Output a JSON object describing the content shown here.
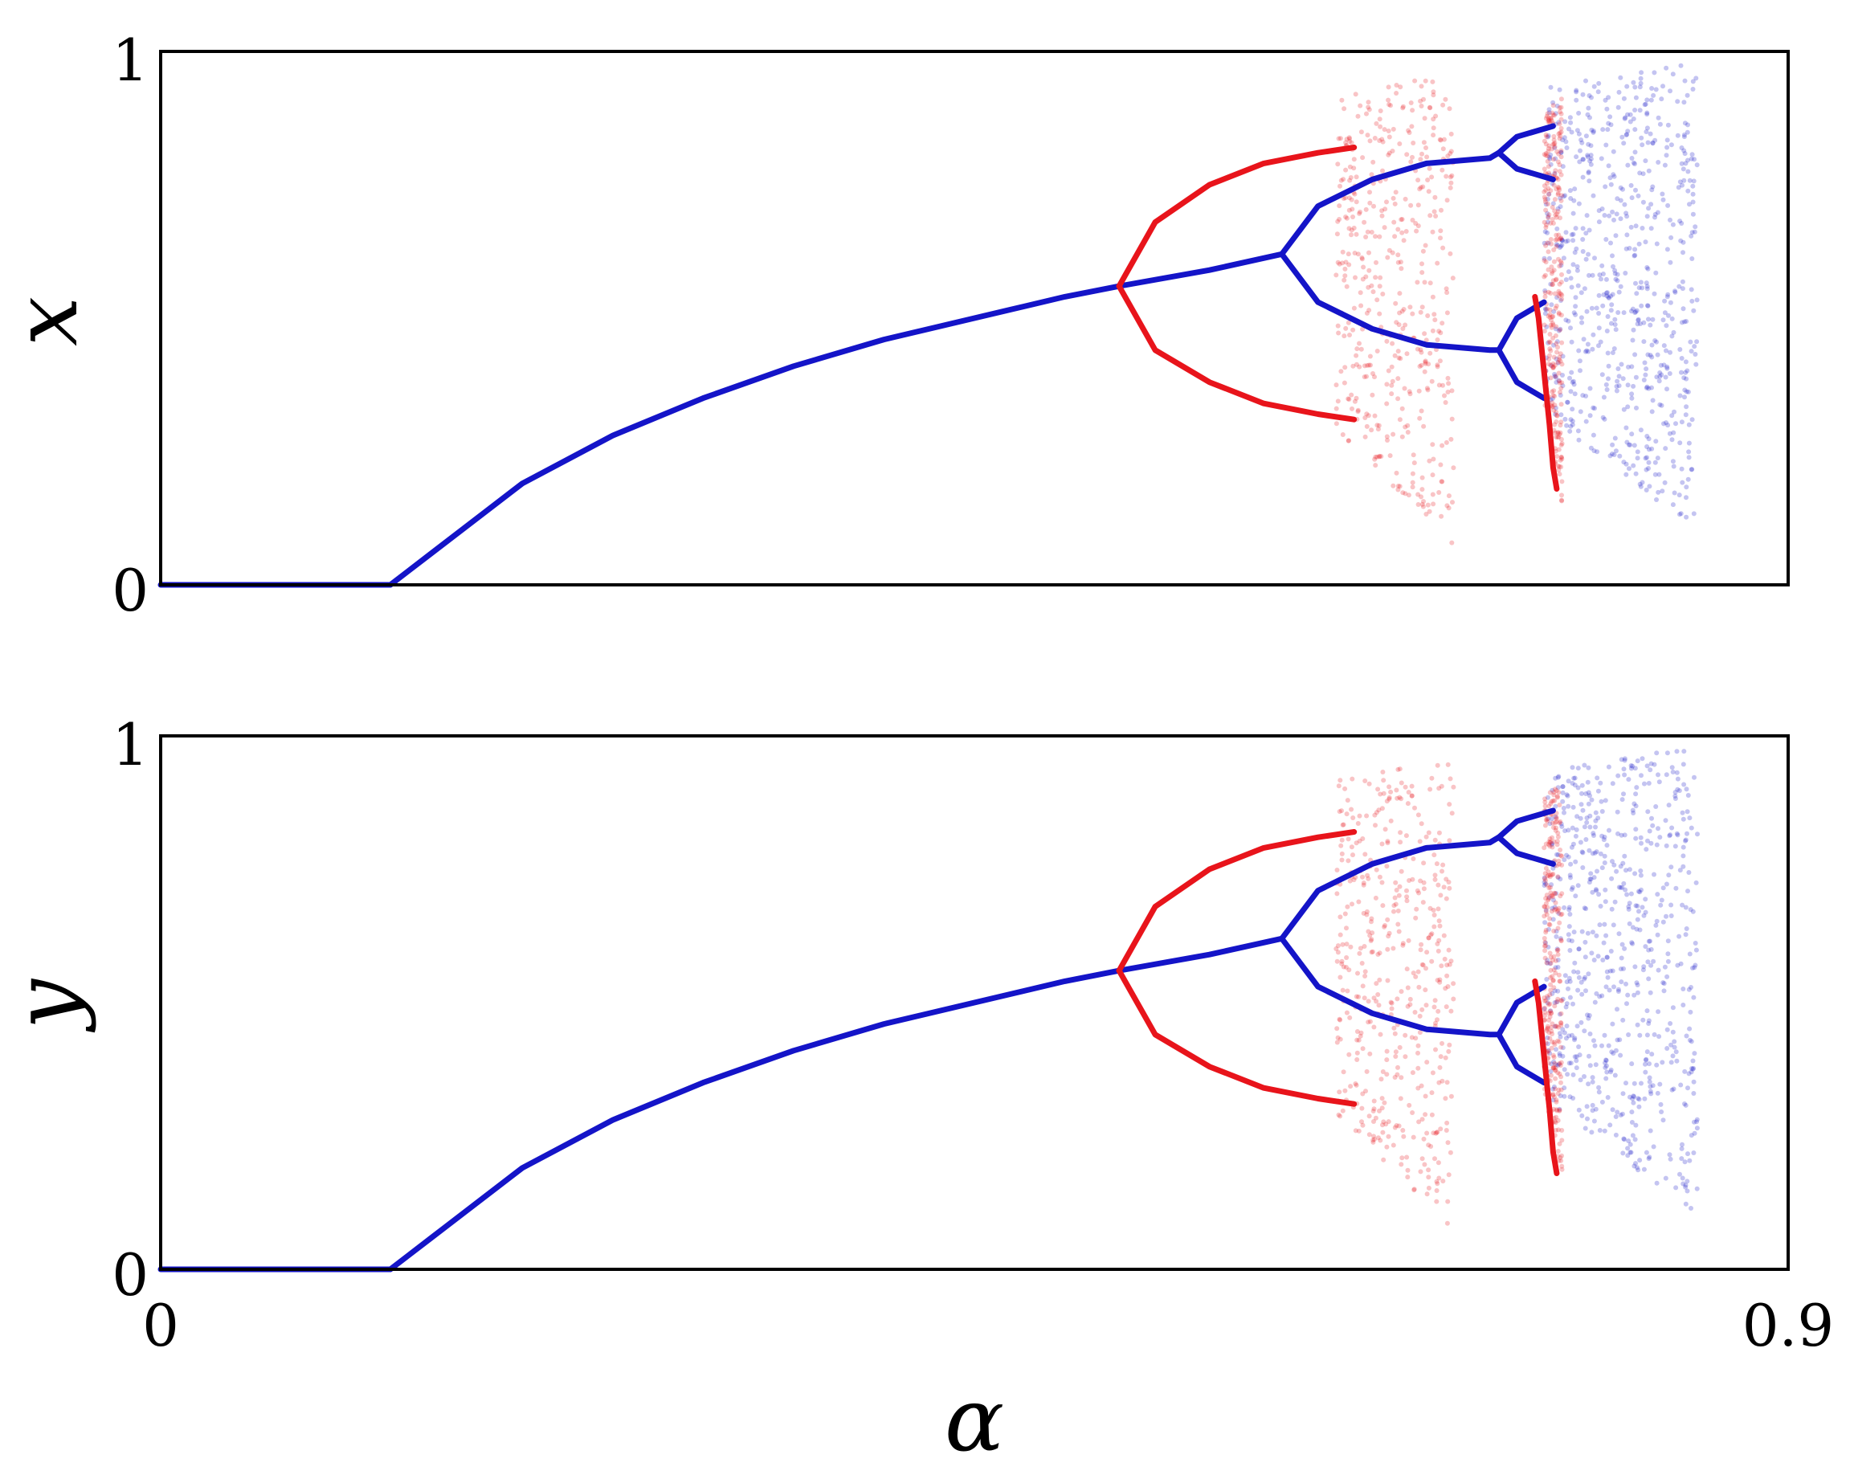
{
  "chart_data": [
    {
      "type": "scatter",
      "ylabel": "x",
      "xlim": [
        0,
        0.9
      ],
      "ylim": [
        0,
        1
      ],
      "yticks": [
        "0",
        "1"
      ],
      "colors": {
        "branch_a": "#e8141b",
        "branch_b": "#1414c8"
      },
      "series": [
        {
          "name": "",
          "color": "#1414c8",
          "segments": [
            {
              "kind": "line",
              "points": [
                [
                  0.0,
                  0.0
                ],
                [
                  0.127,
                  0.0
                ]
              ]
            },
            {
              "kind": "line",
              "points": [
                [
                  0.127,
                  0.0
                ],
                [
                  0.15,
                  0.06
                ],
                [
                  0.2,
                  0.19
                ],
                [
                  0.25,
                  0.28
                ],
                [
                  0.3,
                  0.35
                ],
                [
                  0.35,
                  0.41
                ],
                [
                  0.4,
                  0.46
                ],
                [
                  0.45,
                  0.5
                ],
                [
                  0.5,
                  0.54
                ],
                [
                  0.53,
                  0.56
                ],
                [
                  0.58,
                  0.59
                ],
                [
                  0.62,
                  0.62
                ]
              ]
            },
            {
              "kind": "line",
              "points": [
                [
                  0.62,
                  0.62
                ],
                [
                  0.64,
                  0.71
                ],
                [
                  0.67,
                  0.76
                ],
                [
                  0.7,
                  0.79
                ],
                [
                  0.735,
                  0.8
                ],
                [
                  0.74,
                  0.81
                ]
              ]
            },
            {
              "kind": "line",
              "points": [
                [
                  0.62,
                  0.62
                ],
                [
                  0.64,
                  0.53
                ],
                [
                  0.67,
                  0.48
                ],
                [
                  0.7,
                  0.45
                ],
                [
                  0.735,
                  0.44
                ],
                [
                  0.74,
                  0.44
                ]
              ]
            },
            {
              "kind": "line",
              "points": [
                [
                  0.74,
                  0.81
                ],
                [
                  0.75,
                  0.84
                ],
                [
                  0.76,
                  0.85
                ],
                [
                  0.77,
                  0.86
                ]
              ]
            },
            {
              "kind": "line",
              "points": [
                [
                  0.74,
                  0.81
                ],
                [
                  0.75,
                  0.78
                ],
                [
                  0.76,
                  0.77
                ],
                [
                  0.77,
                  0.76
                ]
              ]
            },
            {
              "kind": "line",
              "points": [
                [
                  0.74,
                  0.44
                ],
                [
                  0.75,
                  0.5
                ],
                [
                  0.76,
                  0.52
                ],
                [
                  0.765,
                  0.53
                ]
              ]
            },
            {
              "kind": "line",
              "points": [
                [
                  0.74,
                  0.44
                ],
                [
                  0.75,
                  0.38
                ],
                [
                  0.76,
                  0.36
                ],
                [
                  0.765,
                  0.35
                ]
              ]
            }
          ],
          "clouds": [
            {
              "x": [
                0.765,
                0.85
              ],
              "y": [
                0.1,
                0.98
              ],
              "density": 0.75
            }
          ]
        },
        {
          "name": "",
          "color": "#e8141b",
          "segments": [
            {
              "kind": "line",
              "points": [
                [
                  0.53,
                  0.56
                ],
                [
                  0.55,
                  0.68
                ],
                [
                  0.58,
                  0.75
                ],
                [
                  0.61,
                  0.79
                ],
                [
                  0.64,
                  0.81
                ],
                [
                  0.66,
                  0.82
                ]
              ]
            },
            {
              "kind": "line",
              "points": [
                [
                  0.53,
                  0.56
                ],
                [
                  0.55,
                  0.44
                ],
                [
                  0.58,
                  0.38
                ],
                [
                  0.61,
                  0.34
                ],
                [
                  0.64,
                  0.32
                ],
                [
                  0.66,
                  0.31
                ]
              ]
            },
            {
              "kind": "line",
              "points": [
                [
                  0.76,
                  0.54
                ],
                [
                  0.762,
                  0.5
                ],
                [
                  0.765,
                  0.4
                ],
                [
                  0.768,
                  0.3
                ],
                [
                  0.77,
                  0.22
                ],
                [
                  0.772,
                  0.18
                ]
              ]
            }
          ],
          "clouds": [
            {
              "x": [
                0.65,
                0.715
              ],
              "y": [
                0.07,
                0.96
              ],
              "density": 0.5
            },
            {
              "x": [
                0.765,
                0.775
              ],
              "y": [
                0.15,
                0.92
              ],
              "density": 0.3
            }
          ]
        }
      ]
    },
    {
      "type": "scatter",
      "ylabel": "y",
      "xlabel": "α",
      "xlim": [
        0,
        0.9
      ],
      "ylim": [
        0,
        1
      ],
      "xticks": [
        "0",
        "0.9"
      ],
      "yticks": [
        "0",
        "1"
      ],
      "colors": {
        "branch_a": "#e8141b",
        "branch_b": "#1414c8"
      },
      "series": [
        {
          "name": "",
          "color": "#1414c8",
          "segments": [
            {
              "kind": "line",
              "points": [
                [
                  0.0,
                  0.0
                ],
                [
                  0.127,
                  0.0
                ]
              ]
            },
            {
              "kind": "line",
              "points": [
                [
                  0.127,
                  0.0
                ],
                [
                  0.15,
                  0.06
                ],
                [
                  0.2,
                  0.19
                ],
                [
                  0.25,
                  0.28
                ],
                [
                  0.3,
                  0.35
                ],
                [
                  0.35,
                  0.41
                ],
                [
                  0.4,
                  0.46
                ],
                [
                  0.45,
                  0.5
                ],
                [
                  0.5,
                  0.54
                ],
                [
                  0.53,
                  0.56
                ],
                [
                  0.58,
                  0.59
                ],
                [
                  0.62,
                  0.62
                ]
              ]
            },
            {
              "kind": "line",
              "points": [
                [
                  0.62,
                  0.62
                ],
                [
                  0.64,
                  0.71
                ],
                [
                  0.67,
                  0.76
                ],
                [
                  0.7,
                  0.79
                ],
                [
                  0.735,
                  0.8
                ],
                [
                  0.74,
                  0.81
                ]
              ]
            },
            {
              "kind": "line",
              "points": [
                [
                  0.62,
                  0.62
                ],
                [
                  0.64,
                  0.53
                ],
                [
                  0.67,
                  0.48
                ],
                [
                  0.7,
                  0.45
                ],
                [
                  0.735,
                  0.44
                ],
                [
                  0.74,
                  0.44
                ]
              ]
            },
            {
              "kind": "line",
              "points": [
                [
                  0.74,
                  0.81
                ],
                [
                  0.75,
                  0.84
                ],
                [
                  0.76,
                  0.85
                ],
                [
                  0.77,
                  0.86
                ]
              ]
            },
            {
              "kind": "line",
              "points": [
                [
                  0.74,
                  0.81
                ],
                [
                  0.75,
                  0.78
                ],
                [
                  0.76,
                  0.77
                ],
                [
                  0.77,
                  0.76
                ]
              ]
            },
            {
              "kind": "line",
              "points": [
                [
                  0.74,
                  0.44
                ],
                [
                  0.75,
                  0.5
                ],
                [
                  0.76,
                  0.52
                ],
                [
                  0.765,
                  0.53
                ]
              ]
            },
            {
              "kind": "line",
              "points": [
                [
                  0.74,
                  0.44
                ],
                [
                  0.75,
                  0.38
                ],
                [
                  0.76,
                  0.36
                ],
                [
                  0.765,
                  0.35
                ]
              ]
            }
          ],
          "clouds": [
            {
              "x": [
                0.765,
                0.85
              ],
              "y": [
                0.1,
                0.98
              ],
              "density": 0.75
            }
          ]
        },
        {
          "name": "",
          "color": "#e8141b",
          "segments": [
            {
              "kind": "line",
              "points": [
                [
                  0.53,
                  0.56
                ],
                [
                  0.55,
                  0.68
                ],
                [
                  0.58,
                  0.75
                ],
                [
                  0.61,
                  0.79
                ],
                [
                  0.64,
                  0.81
                ],
                [
                  0.66,
                  0.82
                ]
              ]
            },
            {
              "kind": "line",
              "points": [
                [
                  0.53,
                  0.56
                ],
                [
                  0.55,
                  0.44
                ],
                [
                  0.58,
                  0.38
                ],
                [
                  0.61,
                  0.34
                ],
                [
                  0.64,
                  0.32
                ],
                [
                  0.66,
                  0.31
                ]
              ]
            },
            {
              "kind": "line",
              "points": [
                [
                  0.76,
                  0.54
                ],
                [
                  0.762,
                  0.5
                ],
                [
                  0.765,
                  0.4
                ],
                [
                  0.768,
                  0.3
                ],
                [
                  0.77,
                  0.22
                ],
                [
                  0.772,
                  0.18
                ]
              ]
            }
          ],
          "clouds": [
            {
              "x": [
                0.65,
                0.715
              ],
              "y": [
                0.07,
                0.96
              ],
              "density": 0.5
            },
            {
              "x": [
                0.765,
                0.775
              ],
              "y": [
                0.15,
                0.92
              ],
              "density": 0.3
            }
          ]
        }
      ]
    }
  ]
}
